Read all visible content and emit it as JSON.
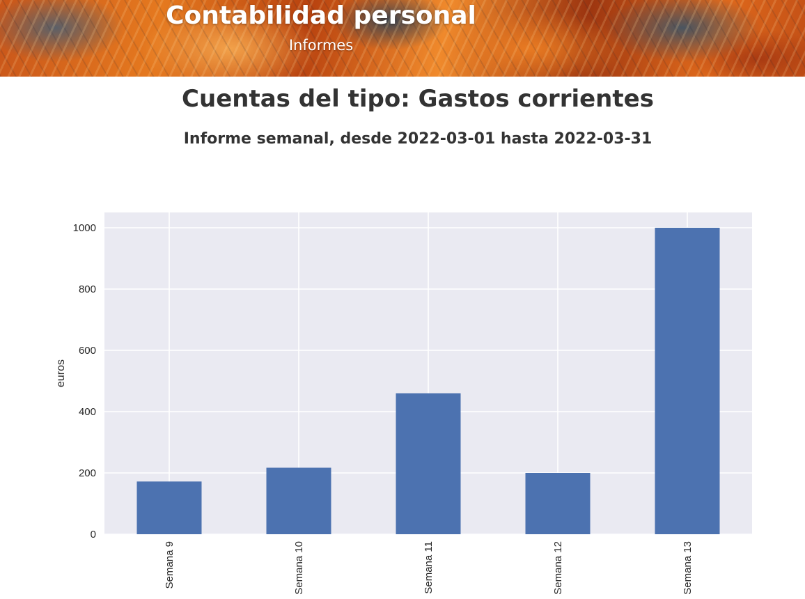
{
  "header": {
    "title": "Contabilidad personal",
    "subtitle": "Informes"
  },
  "report": {
    "heading": "Cuentas del tipo: Gastos corrientes",
    "subheading": "Informe semanal, desde 2022-03-01 hasta 2022-03-31"
  },
  "colors": {
    "bar": "#4c72b0",
    "plot_background": "#eaeaf2",
    "grid": "#ffffff"
  },
  "chart_data": {
    "type": "bar",
    "categories": [
      "Semana 9",
      "Semana 10",
      "Semana 11",
      "Semana 12",
      "Semana 13"
    ],
    "values": [
      172,
      217,
      460,
      200,
      1000
    ],
    "ylabel": "euros",
    "xlabel": "",
    "ylim": [
      0,
      1050
    ],
    "yticks": [
      0,
      200,
      400,
      600,
      800,
      1000
    ],
    "grid": true,
    "legend": false
  }
}
